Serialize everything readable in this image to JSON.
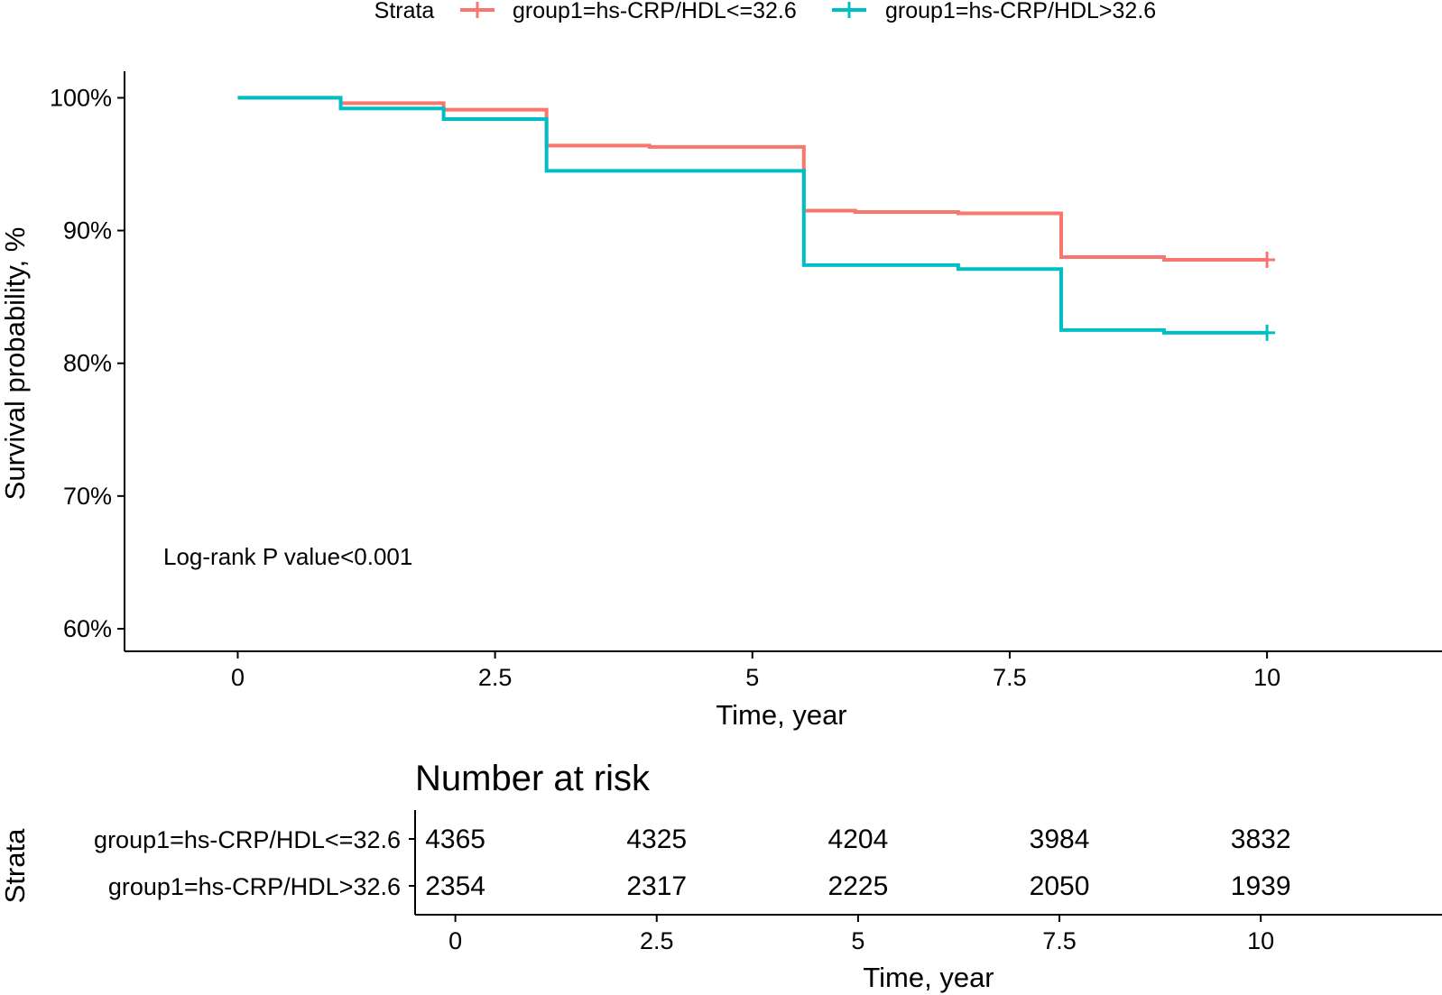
{
  "chart_data": {
    "type": "step-survival",
    "legend": {
      "title": "Strata",
      "placement": "top",
      "entries": [
        "group1=hs-CRP/HDL<=32.6",
        "group1=hs-CRP/HDL>32.6"
      ]
    },
    "xlabel": "Time, year",
    "ylabel": "Survival probability, %",
    "xlim": [
      -1.1,
      11.7
    ],
    "ylim": [
      58.3,
      102.0
    ],
    "x_ticks": [
      0,
      2.5,
      5,
      7.5,
      10
    ],
    "x_tick_labels": [
      "0",
      "2.5",
      "5",
      "7.5",
      "10"
    ],
    "y_ticks": [
      60,
      70,
      80,
      90,
      100
    ],
    "y_tick_labels": [
      "60%",
      "70%",
      "80%",
      "90%",
      "100%"
    ],
    "annotation": "Log-rank P value<0.001",
    "series": [
      {
        "name": "group1=hs-CRP/HDL<=32.6",
        "color": "#F8766D",
        "steps": [
          [
            0,
            100.0
          ],
          [
            1,
            99.6
          ],
          [
            2,
            99.1
          ],
          [
            3,
            96.4
          ],
          [
            4,
            96.3
          ],
          [
            5.5,
            91.5
          ],
          [
            6,
            91.4
          ],
          [
            7,
            91.3
          ],
          [
            8,
            88.0
          ],
          [
            9,
            87.8
          ]
        ],
        "end_x": 10,
        "censor": [
          [
            10,
            87.8
          ]
        ]
      },
      {
        "name": "group1=hs-CRP/HDL>32.6",
        "color": "#00BFC4",
        "steps": [
          [
            0,
            100.0
          ],
          [
            1,
            99.2
          ],
          [
            2,
            98.4
          ],
          [
            3,
            94.5
          ],
          [
            5.5,
            87.4
          ],
          [
            7,
            87.1
          ],
          [
            8,
            82.5
          ],
          [
            9,
            82.3
          ]
        ],
        "end_x": 10,
        "censor": [
          [
            10,
            82.3
          ]
        ]
      }
    ],
    "risk_table": {
      "title": "Number at risk",
      "ylabel": "Strata",
      "xlabel": "Time, year",
      "times": [
        0,
        2.5,
        5,
        7.5,
        10
      ],
      "time_labels": [
        "0",
        "2.5",
        "5",
        "7.5",
        "10"
      ],
      "rows": [
        {
          "name": "group1=hs-CRP/HDL<=32.6",
          "color": "#F8766D",
          "counts": [
            "4365",
            "4325",
            "4204",
            "3984",
            "3832"
          ]
        },
        {
          "name": "group1=hs-CRP/HDL>32.6",
          "color": "#00BFC4",
          "counts": [
            "2354",
            "2317",
            "2225",
            "2050",
            "1939"
          ]
        }
      ]
    }
  }
}
